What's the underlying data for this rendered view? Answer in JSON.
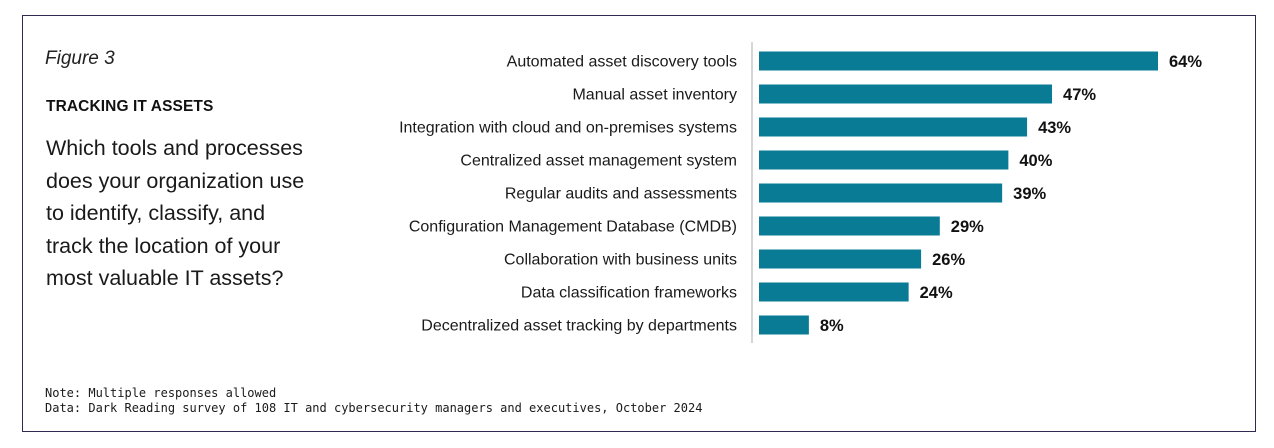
{
  "figure_label": "Figure 3",
  "section_title": "TRACKING IT ASSETS",
  "question_lines": [
    "Which tools and processes",
    "does your organization use",
    "to identify, classify, and",
    "track the location of your",
    "most valuable IT assets?"
  ],
  "notes": {
    "note": "Note: Multiple responses allowed",
    "data": "Data: Dark Reading survey of 108 IT and cybersecurity managers and executives, October 2024"
  },
  "colors": {
    "bar": "#0a7b95",
    "axis": "#c8c8c8",
    "frame": "#2e2a52"
  },
  "chart_data": {
    "type": "bar",
    "orientation": "horizontal",
    "categories": [
      "Automated asset discovery tools",
      "Manual asset inventory",
      "Integration with cloud and on-premises systems",
      "Centralized asset management system",
      "Regular audits and assessments",
      "Configuration Management Database (CMDB)",
      "Collaboration with business units",
      "Data classification frameworks",
      "Decentralized asset tracking by departments"
    ],
    "values": [
      64,
      47,
      43,
      40,
      39,
      29,
      26,
      24,
      8
    ],
    "value_labels": [
      "64%",
      "47%",
      "43%",
      "40%",
      "39%",
      "29%",
      "26%",
      "24%",
      "8%"
    ],
    "unit": "%",
    "xlim": [
      0,
      64
    ],
    "grid": false,
    "legend": "none"
  }
}
